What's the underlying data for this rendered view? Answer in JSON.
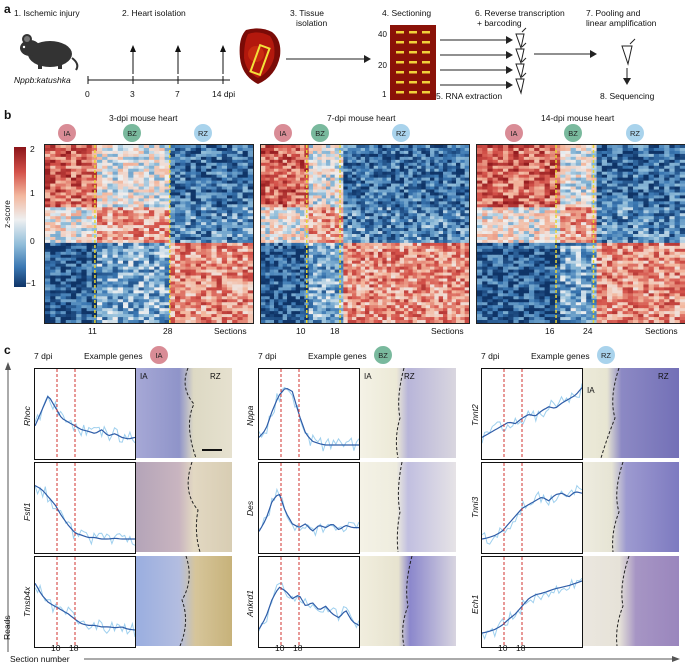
{
  "panel_a": {
    "letter": "a",
    "steps": {
      "s1": "1. Ischemic injury",
      "s2": "2. Heart isolation",
      "s3a": "3. Tissue",
      "s3b": "isolation",
      "s4": "4. Sectioning",
      "s5": "5. RNA extraction",
      "s6a": "6. Reverse transcription",
      "s6b": "+ barcoding",
      "s7a": "7. Pooling and",
      "s7b": "linear amplification",
      "s8": "8. Sequencing"
    },
    "mouse_label": "Nppb:katushka",
    "timeline_ticks": [
      "0",
      "3",
      "7",
      "14 dpi"
    ],
    "section_ticks": [
      "40",
      "20",
      "1"
    ]
  },
  "panel_b": {
    "letter": "b",
    "colorbar_label": "z-score",
    "colorbar_ticks": [
      "2",
      "1",
      "0",
      "−1"
    ],
    "zones": {
      "ia": "IA",
      "bz": "BZ",
      "rz": "RZ"
    },
    "sections_label": "Sections",
    "heatmaps": [
      {
        "title": "3-dpi mouse heart",
        "b1": "11",
        "b2": "28"
      },
      {
        "title": "7-dpi mouse heart",
        "b1": "10",
        "b2": "18"
      },
      {
        "title": "14-dpi mouse heart",
        "b1": "16",
        "b2": "24"
      }
    ]
  },
  "panel_c": {
    "letter": "c",
    "dpi": "7 dpi",
    "example_genes": "Example genes",
    "reads_label": "Reads",
    "section_number_label": "Section number",
    "x_ticks": [
      "10",
      "18"
    ],
    "columns": [
      {
        "zone": "IA",
        "genes": [
          "Rhoc",
          "Fstl1",
          "Tmsb4x"
        ],
        "img_labels": [
          "IA",
          "RZ"
        ]
      },
      {
        "zone": "BZ",
        "genes": [
          "Nppa",
          "Des",
          "Ankrd1"
        ],
        "img_labels": [
          "IA",
          "RZ"
        ]
      },
      {
        "zone": "RZ",
        "genes": [
          "Tnnt2",
          "Tnni3",
          "Ech1"
        ],
        "img_labels": [
          "IA",
          "RZ"
        ]
      }
    ]
  },
  "colors": {
    "ia_badge": "#d98c96",
    "bz_badge": "#79b99d",
    "rz_badge": "#a9d3ec",
    "trace_dark": "#2f5da8",
    "trace_light": "#9fd0ee",
    "boundary": "#d0332f"
  }
}
